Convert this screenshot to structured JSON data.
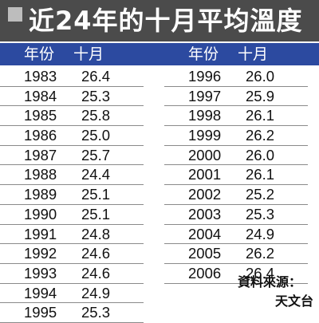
{
  "title": "近24年的十月平均溫度",
  "columns": {
    "year": "年份",
    "month": "十月"
  },
  "rows": [
    {
      "year": "1983",
      "value": "26.4"
    },
    {
      "year": "1984",
      "value": "25.3"
    },
    {
      "year": "1985",
      "value": "25.8"
    },
    {
      "year": "1986",
      "value": "25.0"
    },
    {
      "year": "1987",
      "value": "25.7"
    },
    {
      "year": "1988",
      "value": "24.4"
    },
    {
      "year": "1989",
      "value": "25.1"
    },
    {
      "year": "1990",
      "value": "25.1"
    },
    {
      "year": "1991",
      "value": "24.8"
    },
    {
      "year": "1992",
      "value": "24.6"
    },
    {
      "year": "1993",
      "value": "24.6"
    },
    {
      "year": "1994",
      "value": "24.9"
    },
    {
      "year": "1995",
      "value": "25.3"
    },
    {
      "year": "1996",
      "value": "26.0"
    },
    {
      "year": "1997",
      "value": "25.9"
    },
    {
      "year": "1998",
      "value": "26.1"
    },
    {
      "year": "1999",
      "value": "26.2"
    },
    {
      "year": "2000",
      "value": "26.0"
    },
    {
      "year": "2001",
      "value": "26.1"
    },
    {
      "year": "2002",
      "value": "25.2"
    },
    {
      "year": "2003",
      "value": "25.3"
    },
    {
      "year": "2004",
      "value": "24.9"
    },
    {
      "year": "2005",
      "value": "26.2"
    },
    {
      "year": "2006",
      "value": "26.4"
    }
  ],
  "source": {
    "line1": "資料來源：",
    "line2": "天文台"
  },
  "colors": {
    "title_bg": "#4b4b4b",
    "header_bg": "#2c4aa0"
  }
}
